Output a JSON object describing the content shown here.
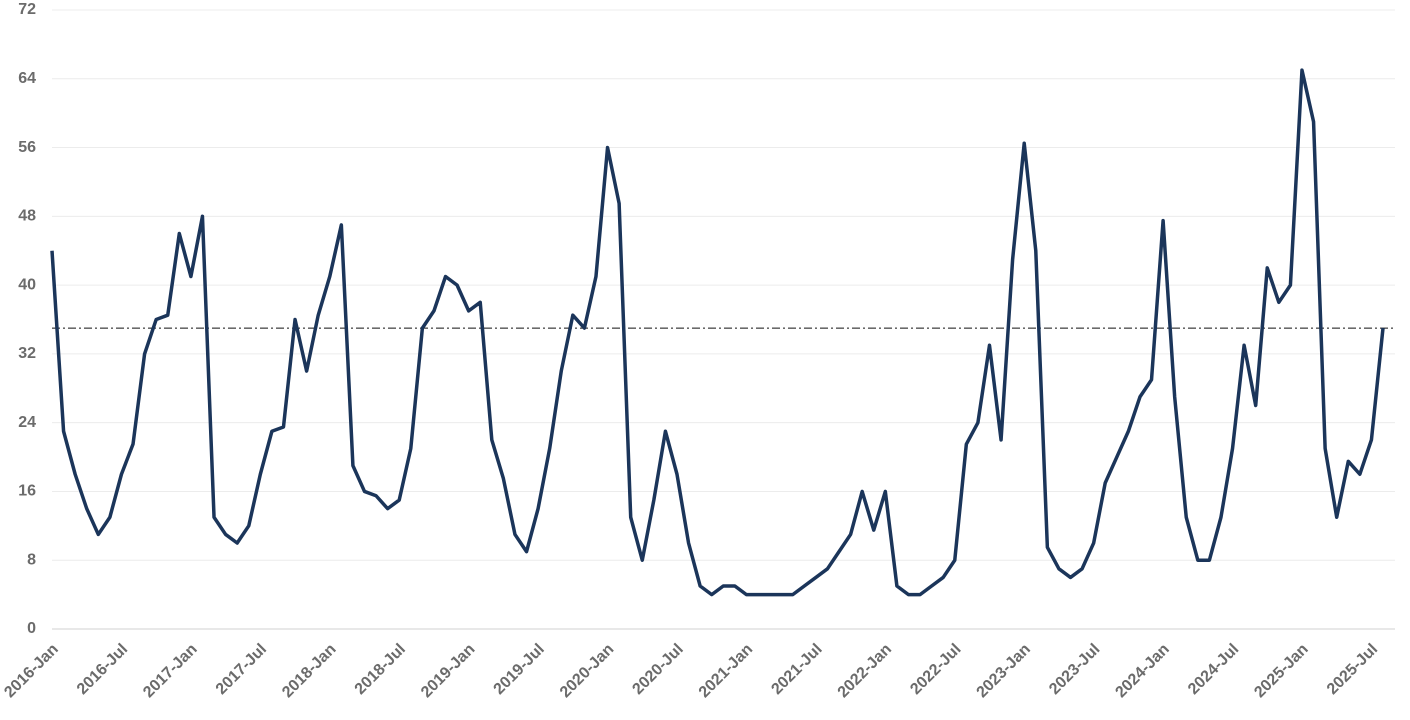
{
  "chart_data": {
    "type": "line",
    "categories": [
      "2016-Jan",
      null,
      null,
      null,
      null,
      null,
      "2016-Jul",
      null,
      null,
      null,
      null,
      null,
      "2017-Jan",
      null,
      null,
      null,
      null,
      null,
      "2017-Jul",
      null,
      null,
      null,
      null,
      null,
      "2018-Jan",
      null,
      null,
      null,
      null,
      null,
      "2018-Jul",
      null,
      null,
      null,
      null,
      null,
      "2019-Jan",
      null,
      null,
      null,
      null,
      null,
      "2019-Jul",
      null,
      null,
      null,
      null,
      null,
      "2020-Jan",
      null,
      null,
      null,
      null,
      null,
      "2020-Jul",
      null,
      null,
      null,
      null,
      null,
      "2021-Jan",
      null,
      null,
      null,
      null,
      null,
      "2021-Jul",
      null,
      null,
      null,
      null,
      null,
      "2022-Jan",
      null,
      null,
      null,
      null,
      null,
      "2022-Jul",
      null,
      null,
      null,
      null,
      null,
      "2023-Jan",
      null,
      null,
      null,
      null,
      null,
      "2023-Jul",
      null,
      null,
      null,
      null,
      null,
      "2024-Jan",
      null,
      null,
      null,
      null,
      null,
      "2024-Jul",
      null,
      null,
      null,
      null,
      null,
      "2025-Jan",
      null,
      null,
      null,
      null,
      null,
      "2025-Jul",
      null
    ],
    "series": [
      {
        "color": "#1b355a",
        "values": [
          44,
          23,
          18,
          14,
          11,
          13,
          18,
          21.5,
          32,
          36,
          36.5,
          46,
          41,
          48,
          13,
          11,
          10,
          12,
          18,
          23,
          23.5,
          36,
          30,
          36.5,
          41,
          47,
          19,
          16,
          15.5,
          14,
          15,
          21,
          35,
          37,
          41,
          40,
          37,
          38,
          22,
          17.5,
          11,
          9,
          14,
          21,
          30,
          36.5,
          35,
          41,
          56,
          49.5,
          13,
          8,
          15,
          23,
          18,
          10,
          5,
          4,
          5,
          5,
          4,
          4,
          4,
          4,
          4,
          5,
          6,
          7,
          9,
          11,
          16,
          11.5,
          16,
          5,
          4,
          4,
          5,
          6,
          8,
          21.5,
          24,
          33,
          22,
          43,
          56.5,
          44,
          9.5,
          7,
          6,
          7,
          10,
          17,
          20,
          23,
          27,
          29,
          47.5,
          27,
          13,
          8,
          8,
          13,
          21,
          33,
          26,
          42,
          38,
          40,
          65,
          59,
          21,
          13,
          19.5,
          18,
          22,
          35
        ]
      }
    ],
    "reference_line": 35,
    "ylim": [
      0,
      72
    ],
    "yticks": [
      0,
      8,
      16,
      24,
      32,
      40,
      48,
      56,
      64,
      72
    ],
    "grid": true
  }
}
